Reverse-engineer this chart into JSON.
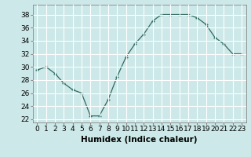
{
  "x": [
    0,
    1,
    2,
    3,
    4,
    5,
    6,
    7,
    8,
    9,
    10,
    11,
    12,
    13,
    14,
    15,
    16,
    17,
    18,
    19,
    20,
    21,
    22,
    23
  ],
  "y": [
    29.5,
    30.0,
    29.0,
    27.5,
    26.5,
    26.0,
    22.5,
    22.5,
    25.0,
    28.5,
    31.5,
    33.5,
    35.0,
    37.0,
    38.0,
    38.0,
    38.0,
    38.0,
    37.5,
    36.5,
    34.5,
    33.5,
    32.0,
    32.0
  ],
  "xlabel": "Humidex (Indice chaleur)",
  "ylim": [
    21.5,
    39.5
  ],
  "xlim": [
    -0.5,
    23.5
  ],
  "yticks": [
    22,
    24,
    26,
    28,
    30,
    32,
    34,
    36,
    38
  ],
  "xticks": [
    0,
    1,
    2,
    3,
    4,
    5,
    6,
    7,
    8,
    9,
    10,
    11,
    12,
    13,
    14,
    15,
    16,
    17,
    18,
    19,
    20,
    21,
    22,
    23
  ],
  "line_color": "#2e6b5e",
  "marker_color": "#2e6b5e",
  "bg_color": "#cce8e8",
  "grid_color": "#ffffff",
  "xlabel_fontsize": 7.5,
  "tick_fontsize": 6.5
}
